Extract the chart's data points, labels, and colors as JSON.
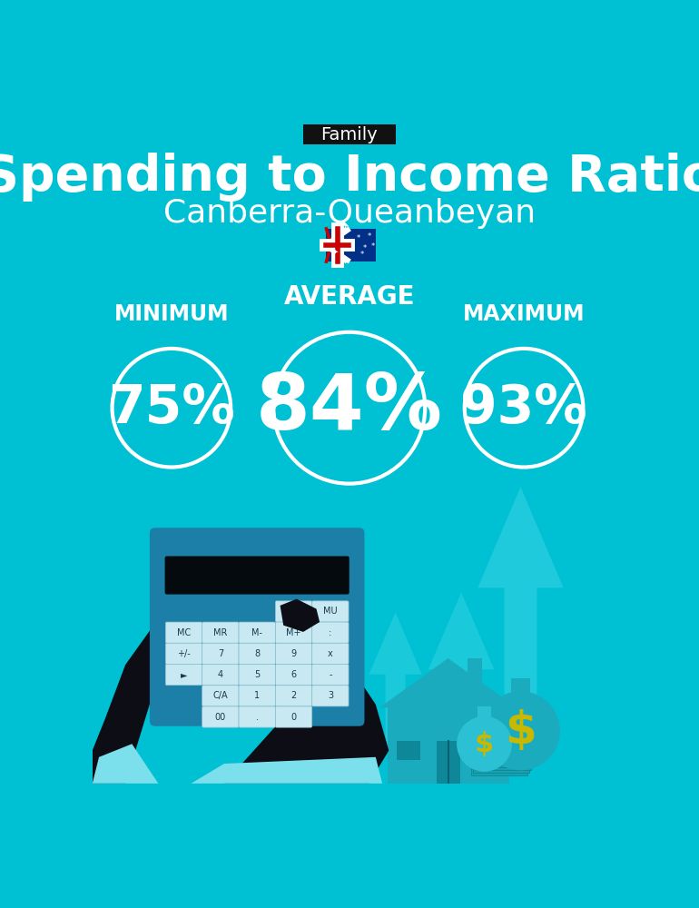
{
  "bg_color": "#00C1D4",
  "title_tag": "Family",
  "title_tag_bg": "#111111",
  "title_tag_color": "#ffffff",
  "main_title": "Spending to Income Ratio",
  "subtitle": "Canberra-Queanbeyan",
  "text_color": "#ffffff",
  "min_label": "MINIMUM",
  "avg_label": "AVERAGE",
  "max_label": "MAXIMUM",
  "min_value": "75%",
  "avg_value": "84%",
  "max_value": "93%",
  "circle_edgecolor": "#ffffff",
  "circle_lw": 3.0
}
